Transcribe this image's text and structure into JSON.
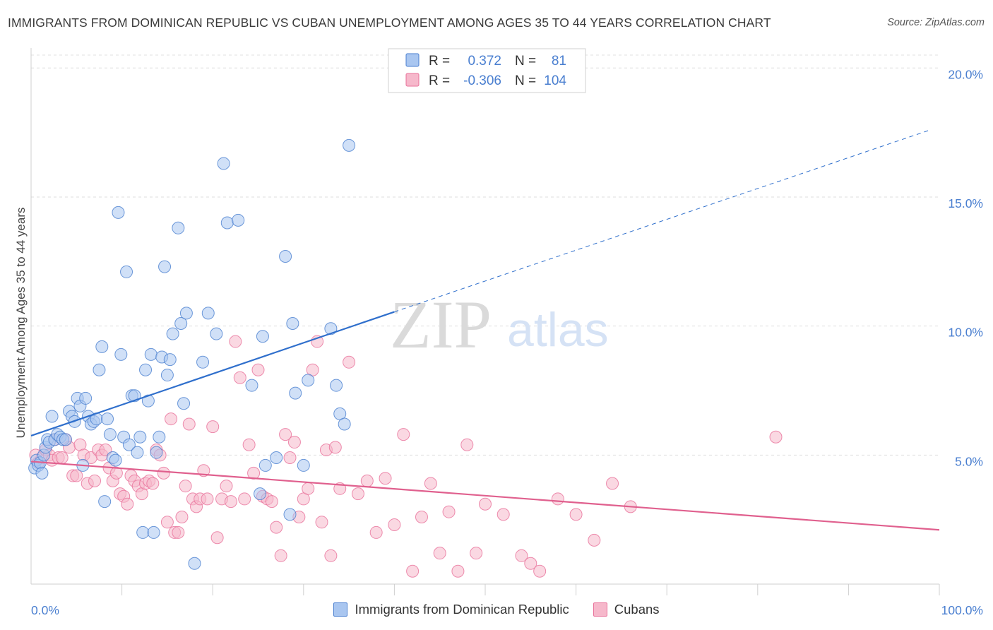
{
  "header": {
    "title": "IMMIGRANTS FROM DOMINICAN REPUBLIC VS CUBAN UNEMPLOYMENT AMONG AGES 35 TO 44 YEARS CORRELATION CHART",
    "source": "Source: ZipAtlas.com"
  },
  "watermark": {
    "zip": "ZIP",
    "atlas": "atlas"
  },
  "colors": {
    "blue": "#4a7fd0",
    "blue_fill": "#a9c6f0",
    "blue_line": "#2f6fcc",
    "pink": "#e8719a",
    "pink_fill": "#f6b8cb",
    "pink_line": "#e0608e"
  },
  "stats_legend": [
    {
      "r_label": "R =",
      "r_value": "0.372",
      "n_label": "N =",
      "n_value": "81",
      "color": "blue"
    },
    {
      "r_label": "R =",
      "r_value": "-0.306",
      "n_label": "N =",
      "n_value": "104",
      "color": "pink"
    }
  ],
  "chart_data": {
    "type": "scatter",
    "title": "IMMIGRANTS FROM DOMINICAN REPUBLIC VS CUBAN UNEMPLOYMENT AMONG AGES 35 TO 44 YEARS CORRELATION CHART",
    "xlabel": "",
    "ylabel": "Unemployment Among Ages 35 to 44 years",
    "xlim": [
      0,
      100
    ],
    "ylim": [
      0,
      20.5
    ],
    "x_tick_labels": [
      "0.0%",
      "100.0%"
    ],
    "y_ticks": [
      5,
      10,
      15,
      20
    ],
    "y_tick_labels": [
      "5.0%",
      "10.0%",
      "15.0%",
      "20.0%"
    ],
    "grid": true,
    "legend_position": "bottom",
    "series": [
      {
        "name": "Immigrants from Dominican Republic",
        "color": "blue",
        "trend": {
          "x0": 0,
          "y0": 5.75,
          "x1": 40,
          "y1": 10.55,
          "dash_to_x": 99,
          "dash_to_y": 17.6
        },
        "points": [
          [
            0.4,
            4.5
          ],
          [
            0.6,
            4.8
          ],
          [
            0.8,
            4.6
          ],
          [
            1.0,
            4.7
          ],
          [
            1.2,
            4.3
          ],
          [
            1.4,
            5.0
          ],
          [
            1.6,
            5.3
          ],
          [
            1.8,
            5.6
          ],
          [
            2.0,
            5.5
          ],
          [
            2.3,
            6.5
          ],
          [
            2.6,
            5.6
          ],
          [
            2.9,
            5.8
          ],
          [
            3.2,
            5.7
          ],
          [
            3.5,
            5.6
          ],
          [
            3.8,
            5.6
          ],
          [
            4.2,
            6.7
          ],
          [
            4.5,
            6.5
          ],
          [
            4.8,
            6.3
          ],
          [
            5.1,
            7.2
          ],
          [
            5.4,
            6.9
          ],
          [
            5.7,
            4.6
          ],
          [
            6.0,
            7.2
          ],
          [
            6.3,
            6.5
          ],
          [
            6.6,
            6.2
          ],
          [
            6.9,
            6.3
          ],
          [
            7.2,
            6.4
          ],
          [
            7.5,
            8.3
          ],
          [
            7.8,
            9.2
          ],
          [
            8.1,
            3.2
          ],
          [
            8.4,
            6.4
          ],
          [
            8.7,
            5.8
          ],
          [
            9.0,
            4.9
          ],
          [
            9.3,
            4.8
          ],
          [
            9.6,
            14.4
          ],
          [
            9.9,
            8.9
          ],
          [
            10.2,
            5.7
          ],
          [
            10.5,
            12.1
          ],
          [
            10.8,
            5.4
          ],
          [
            11.1,
            7.3
          ],
          [
            11.4,
            7.3
          ],
          [
            11.7,
            5.1
          ],
          [
            12.0,
            5.7
          ],
          [
            12.3,
            2.0
          ],
          [
            12.6,
            8.3
          ],
          [
            12.9,
            7.1
          ],
          [
            13.2,
            8.9
          ],
          [
            13.5,
            2.0
          ],
          [
            13.8,
            5.1
          ],
          [
            14.1,
            5.7
          ],
          [
            14.4,
            8.8
          ],
          [
            14.7,
            12.3
          ],
          [
            15.0,
            8.1
          ],
          [
            15.3,
            8.7
          ],
          [
            15.6,
            9.7
          ],
          [
            16.2,
            13.8
          ],
          [
            16.5,
            10.1
          ],
          [
            16.8,
            7.0
          ],
          [
            17.1,
            10.5
          ],
          [
            18.0,
            0.8
          ],
          [
            18.9,
            8.6
          ],
          [
            19.5,
            10.5
          ],
          [
            20.4,
            9.7
          ],
          [
            21.2,
            16.3
          ],
          [
            21.6,
            14.0
          ],
          [
            22.8,
            14.1
          ],
          [
            24.3,
            7.7
          ],
          [
            25.2,
            3.5
          ],
          [
            25.5,
            9.6
          ],
          [
            25.8,
            4.6
          ],
          [
            27.0,
            4.9
          ],
          [
            28.0,
            12.7
          ],
          [
            28.5,
            2.7
          ],
          [
            28.8,
            10.1
          ],
          [
            29.1,
            7.4
          ],
          [
            30.5,
            7.9
          ],
          [
            33.0,
            9.9
          ],
          [
            33.6,
            7.7
          ],
          [
            34.0,
            6.6
          ],
          [
            34.5,
            6.2
          ],
          [
            35.0,
            17.0
          ],
          [
            30.0,
            4.6
          ]
        ]
      },
      {
        "name": "Cubans",
        "color": "pink",
        "trend": {
          "x0": 0,
          "y0": 4.75,
          "x1": 100,
          "y1": 2.1
        },
        "points": [
          [
            0.5,
            5.0
          ],
          [
            0.8,
            4.7
          ],
          [
            1.2,
            4.9
          ],
          [
            1.6,
            5.2
          ],
          [
            2.0,
            5.0
          ],
          [
            2.3,
            4.8
          ],
          [
            2.6,
            5.6
          ],
          [
            3.0,
            4.9
          ],
          [
            3.4,
            4.9
          ],
          [
            3.8,
            5.6
          ],
          [
            4.2,
            5.3
          ],
          [
            4.6,
            4.2
          ],
          [
            5.0,
            4.2
          ],
          [
            5.4,
            5.4
          ],
          [
            5.8,
            5.0
          ],
          [
            6.2,
            3.9
          ],
          [
            6.6,
            4.9
          ],
          [
            7.0,
            4.0
          ],
          [
            7.4,
            5.2
          ],
          [
            7.8,
            5.0
          ],
          [
            8.2,
            5.2
          ],
          [
            8.6,
            4.5
          ],
          [
            9.0,
            4.0
          ],
          [
            9.4,
            4.3
          ],
          [
            9.8,
            3.5
          ],
          [
            10.2,
            3.4
          ],
          [
            10.6,
            3.1
          ],
          [
            11.0,
            4.2
          ],
          [
            11.4,
            4.0
          ],
          [
            11.8,
            3.8
          ],
          [
            12.2,
            3.5
          ],
          [
            12.6,
            3.9
          ],
          [
            13.0,
            4.0
          ],
          [
            13.4,
            3.9
          ],
          [
            13.8,
            5.2
          ],
          [
            14.2,
            5.0
          ],
          [
            14.6,
            4.3
          ],
          [
            15.0,
            2.4
          ],
          [
            15.4,
            6.4
          ],
          [
            15.8,
            2.0
          ],
          [
            16.2,
            2.0
          ],
          [
            16.6,
            2.6
          ],
          [
            17.0,
            3.8
          ],
          [
            17.4,
            6.2
          ],
          [
            17.8,
            3.3
          ],
          [
            18.2,
            3.0
          ],
          [
            18.6,
            3.3
          ],
          [
            19.0,
            4.4
          ],
          [
            19.4,
            3.3
          ],
          [
            20.0,
            6.1
          ],
          [
            20.5,
            1.8
          ],
          [
            21.0,
            3.3
          ],
          [
            21.5,
            3.8
          ],
          [
            22.0,
            3.2
          ],
          [
            22.5,
            9.4
          ],
          [
            23.0,
            8.0
          ],
          [
            23.5,
            3.3
          ],
          [
            24.0,
            5.4
          ],
          [
            24.5,
            4.3
          ],
          [
            25.0,
            8.3
          ],
          [
            25.5,
            3.4
          ],
          [
            26.0,
            3.3
          ],
          [
            26.5,
            3.2
          ],
          [
            27.0,
            2.2
          ],
          [
            27.5,
            1.1
          ],
          [
            28.0,
            5.8
          ],
          [
            28.5,
            4.9
          ],
          [
            29.0,
            5.5
          ],
          [
            29.5,
            2.6
          ],
          [
            30.0,
            3.3
          ],
          [
            30.5,
            3.7
          ],
          [
            31.0,
            8.3
          ],
          [
            31.5,
            9.4
          ],
          [
            32.0,
            2.4
          ],
          [
            32.5,
            5.2
          ],
          [
            33.0,
            1.1
          ],
          [
            33.5,
            5.3
          ],
          [
            34.0,
            3.7
          ],
          [
            35.0,
            8.6
          ],
          [
            36.0,
            3.5
          ],
          [
            37.0,
            4.0
          ],
          [
            38.0,
            2.0
          ],
          [
            39.0,
            4.1
          ],
          [
            40.0,
            2.3
          ],
          [
            41.0,
            5.8
          ],
          [
            42.0,
            0.5
          ],
          [
            43.0,
            2.6
          ],
          [
            44.0,
            3.9
          ],
          [
            45.0,
            1.2
          ],
          [
            46.0,
            2.8
          ],
          [
            47.0,
            0.5
          ],
          [
            48.0,
            5.4
          ],
          [
            49.0,
            1.2
          ],
          [
            50.0,
            3.1
          ],
          [
            52.0,
            2.7
          ],
          [
            54.0,
            1.1
          ],
          [
            55.0,
            0.8
          ],
          [
            56.0,
            0.5
          ],
          [
            58.0,
            3.3
          ],
          [
            60.0,
            2.7
          ],
          [
            62.0,
            1.7
          ],
          [
            64.0,
            3.9
          ],
          [
            66.0,
            3.0
          ],
          [
            82.0,
            5.7
          ]
        ]
      }
    ],
    "bottom_legend": [
      "Immigrants from Dominican Republic",
      "Cubans"
    ]
  }
}
